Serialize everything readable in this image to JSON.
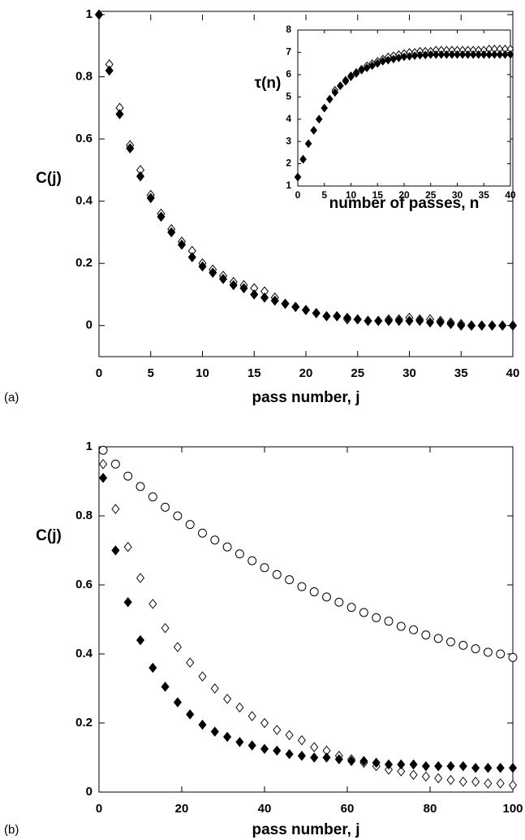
{
  "chart_data": [
    {
      "type": "scatter",
      "panel_label": "(a)",
      "x_label": "pass number, j",
      "y_label": "C(j)",
      "xlim": [
        0,
        40
      ],
      "ylim": [
        -0.1,
        1
      ],
      "xticks": [
        0,
        5,
        10,
        15,
        20,
        25,
        30,
        35,
        40
      ],
      "yticks": [
        0,
        0.2,
        0.4,
        0.6,
        0.8,
        1
      ],
      "x": [
        0,
        1,
        2,
        3,
        4,
        5,
        6,
        7,
        8,
        9,
        10,
        11,
        12,
        13,
        14,
        15,
        16,
        17,
        18,
        19,
        20,
        21,
        22,
        23,
        24,
        25,
        26,
        27,
        28,
        29,
        30,
        31,
        32,
        33,
        34,
        35,
        36,
        37,
        38,
        39,
        40
      ],
      "series": [
        {
          "marker": "open-diamond",
          "color": "#000000",
          "values": [
            1.0,
            0.84,
            0.7,
            0.58,
            0.5,
            0.42,
            0.36,
            0.31,
            0.27,
            0.24,
            0.2,
            0.18,
            0.16,
            0.14,
            0.13,
            0.12,
            0.11,
            0.09,
            0.07,
            0.06,
            0.05,
            0.04,
            0.03,
            0.03,
            0.02,
            0.02,
            0.015,
            0.015,
            0.02,
            0.02,
            0.025,
            0.02,
            0.02,
            0.015,
            0.01,
            0.005,
            0,
            0,
            0,
            0,
            0
          ]
        },
        {
          "marker": "filled-diamond",
          "color": "#000000",
          "values": [
            1.0,
            0.82,
            0.68,
            0.57,
            0.48,
            0.41,
            0.35,
            0.3,
            0.26,
            0.22,
            0.19,
            0.17,
            0.15,
            0.13,
            0.12,
            0.1,
            0.09,
            0.08,
            0.07,
            0.06,
            0.05,
            0.04,
            0.03,
            0.03,
            0.025,
            0.02,
            0.015,
            0.015,
            0.015,
            0.015,
            0.015,
            0.015,
            0.01,
            0.01,
            0.005,
            0,
            0,
            0,
            0,
            0,
            0
          ]
        }
      ]
    },
    {
      "type": "scatter",
      "x_label": "number of passes, n",
      "y_label": "τ(n)",
      "xlim": [
        0,
        40
      ],
      "ylim": [
        1,
        8
      ],
      "xticks": [
        0,
        5,
        10,
        15,
        20,
        25,
        30,
        35,
        40
      ],
      "yticks": [
        1,
        2,
        3,
        4,
        5,
        6,
        7,
        8
      ],
      "x": [
        0,
        1,
        2,
        3,
        4,
        5,
        6,
        7,
        8,
        9,
        10,
        11,
        12,
        13,
        14,
        15,
        16,
        17,
        18,
        19,
        20,
        21,
        22,
        23,
        24,
        25,
        26,
        27,
        28,
        29,
        30,
        31,
        32,
        33,
        34,
        35,
        36,
        37,
        38,
        39,
        40
      ],
      "series": [
        {
          "marker": "open-diamond",
          "color": "#000000",
          "values": [
            1.4,
            2.2,
            2.9,
            3.5,
            4.0,
            4.5,
            4.9,
            5.3,
            5.5,
            5.75,
            5.95,
            6.1,
            6.25,
            6.4,
            6.5,
            6.6,
            6.7,
            6.8,
            6.85,
            6.9,
            6.95,
            7.0,
            7.0,
            7.05,
            7.05,
            7.05,
            7.1,
            7.1,
            7.1,
            7.1,
            7.1,
            7.1,
            7.1,
            7.1,
            7.1,
            7.1,
            7.15,
            7.15,
            7.15,
            7.15,
            7.15
          ]
        },
        {
          "marker": "filled-diamond",
          "color": "#000000",
          "values": [
            1.4,
            2.2,
            2.9,
            3.5,
            4.0,
            4.5,
            4.9,
            5.2,
            5.5,
            5.7,
            5.9,
            6.05,
            6.2,
            6.3,
            6.4,
            6.5,
            6.6,
            6.65,
            6.7,
            6.75,
            6.8,
            6.82,
            6.85,
            6.87,
            6.88,
            6.9,
            6.9,
            6.9,
            6.9,
            6.9,
            6.9,
            6.9,
            6.9,
            6.9,
            6.9,
            6.9,
            6.9,
            6.9,
            6.9,
            6.9,
            6.9
          ]
        }
      ]
    },
    {
      "type": "scatter",
      "panel_label": "(b)",
      "x_label": "pass number, j",
      "y_label": "C(j)",
      "xlim": [
        0,
        100
      ],
      "ylim": [
        0,
        1
      ],
      "xticks": [
        0,
        20,
        40,
        60,
        80,
        100
      ],
      "yticks": [
        0,
        0.2,
        0.4,
        0.6,
        0.8,
        1
      ],
      "x": [
        1,
        4,
        7,
        10,
        13,
        16,
        19,
        22,
        25,
        28,
        31,
        34,
        37,
        40,
        43,
        46,
        49,
        52,
        55,
        58,
        61,
        64,
        67,
        70,
        73,
        76,
        79,
        82,
        85,
        88,
        91,
        94,
        97,
        100
      ],
      "series": [
        {
          "marker": "open-circle",
          "color": "#000000",
          "values": [
            0.99,
            0.95,
            0.915,
            0.885,
            0.855,
            0.825,
            0.8,
            0.775,
            0.75,
            0.73,
            0.71,
            0.69,
            0.67,
            0.65,
            0.63,
            0.615,
            0.595,
            0.58,
            0.565,
            0.55,
            0.535,
            0.52,
            0.505,
            0.495,
            0.48,
            0.47,
            0.455,
            0.445,
            0.435,
            0.425,
            0.415,
            0.405,
            0.4,
            0.39
          ]
        },
        {
          "marker": "open-diamond",
          "color": "#000000",
          "values": [
            0.95,
            0.82,
            0.71,
            0.62,
            0.545,
            0.475,
            0.42,
            0.375,
            0.335,
            0.3,
            0.27,
            0.245,
            0.22,
            0.2,
            0.18,
            0.165,
            0.15,
            0.13,
            0.12,
            0.105,
            0.095,
            0.085,
            0.075,
            0.065,
            0.06,
            0.05,
            0.045,
            0.04,
            0.035,
            0.03,
            0.03,
            0.025,
            0.025,
            0.02
          ]
        },
        {
          "marker": "filled-diamond",
          "color": "#000000",
          "values": [
            0.91,
            0.7,
            0.55,
            0.44,
            0.36,
            0.305,
            0.26,
            0.225,
            0.195,
            0.175,
            0.16,
            0.145,
            0.135,
            0.125,
            0.12,
            0.11,
            0.105,
            0.1,
            0.1,
            0.095,
            0.09,
            0.09,
            0.085,
            0.08,
            0.08,
            0.08,
            0.075,
            0.075,
            0.075,
            0.075,
            0.07,
            0.07,
            0.07,
            0.07
          ]
        }
      ]
    }
  ]
}
